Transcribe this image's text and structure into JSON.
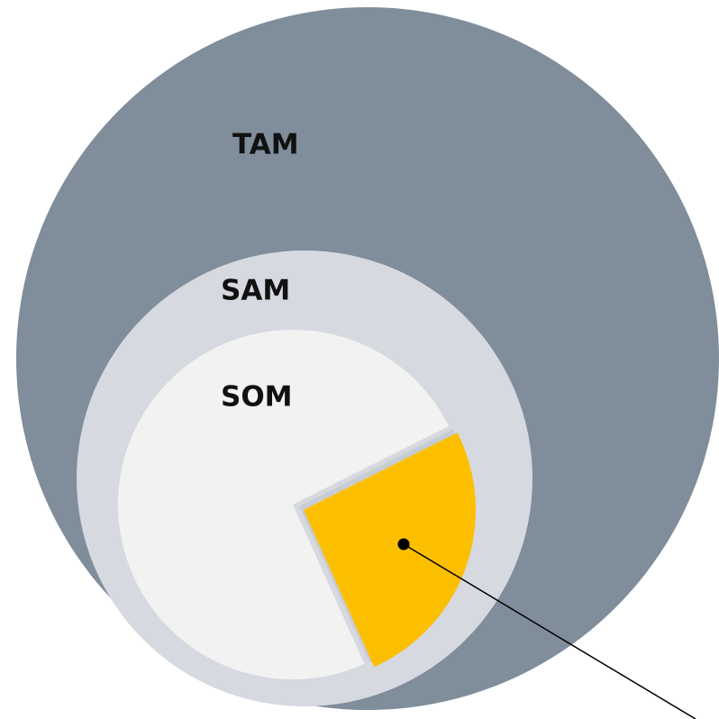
{
  "labels": {
    "tam": "TAM",
    "sam": "SAM",
    "som": "SOM"
  }
}
